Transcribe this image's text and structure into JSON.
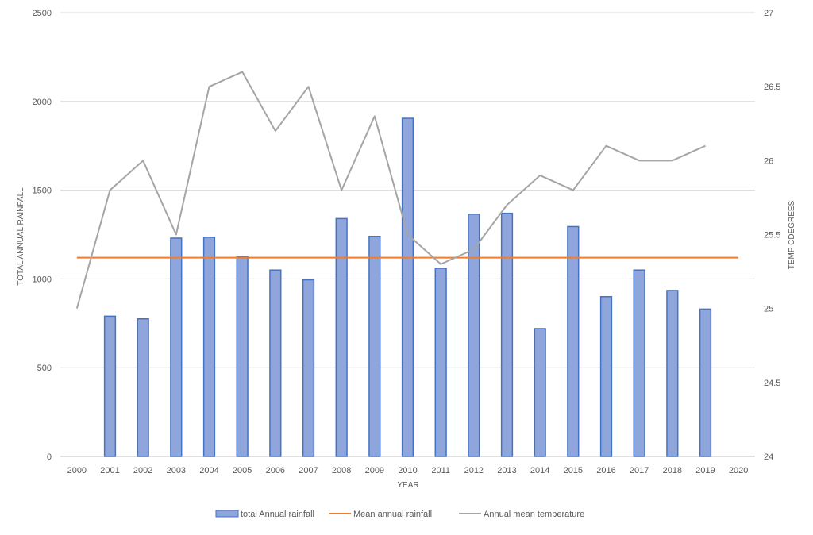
{
  "chart_data": {
    "type": "bar",
    "xlabel": "YEAR",
    "ylabel": "TOTAL ANNUAL RAINFALL",
    "y2label": "TEMP CDEGREES",
    "categories": [
      "2000",
      "2001",
      "2002",
      "2003",
      "2004",
      "2005",
      "2006",
      "2007",
      "2008",
      "2009",
      "2010",
      "2011",
      "2012",
      "2013",
      "2014",
      "2015",
      "2016",
      "2017",
      "2018",
      "2019",
      "2020"
    ],
    "ylim": [
      0,
      2500
    ],
    "yticks": [
      "0",
      "500",
      "1000",
      "1500",
      "2000",
      "2500"
    ],
    "y2lim": [
      24,
      27
    ],
    "y2ticks": [
      "24",
      "24.5",
      "25",
      "25.5",
      "26",
      "26.5",
      "27"
    ],
    "grid": true,
    "legend_position": "bottom",
    "series": [
      {
        "name": "total Annual rainfall",
        "kind": "bar",
        "axis": "left",
        "color": "#8EA6DB",
        "edge_color": "#4472C4",
        "values": [
          null,
          790,
          775,
          1230,
          1235,
          1125,
          1050,
          995,
          1340,
          1240,
          1905,
          1060,
          1365,
          1370,
          720,
          1295,
          900,
          1050,
          935,
          830,
          null
        ]
      },
      {
        "name": "Mean annual rainfall",
        "kind": "line",
        "axis": "left",
        "color": "#ED7D31",
        "values": [
          1120,
          1120,
          1120,
          1120,
          1120,
          1120,
          1120,
          1120,
          1120,
          1120,
          1120,
          1120,
          1120,
          1120,
          1120,
          1120,
          1120,
          1120,
          1120,
          1120,
          1120
        ]
      },
      {
        "name": "Annual mean temperature",
        "kind": "line",
        "axis": "right",
        "color": "#A5A5A5",
        "values": [
          25.0,
          25.8,
          26.0,
          25.5,
          26.5,
          26.6,
          26.2,
          26.5,
          25.8,
          26.3,
          25.5,
          25.3,
          25.4,
          25.7,
          25.9,
          25.8,
          26.1,
          26.0,
          26.0,
          26.1,
          null
        ]
      }
    ]
  }
}
